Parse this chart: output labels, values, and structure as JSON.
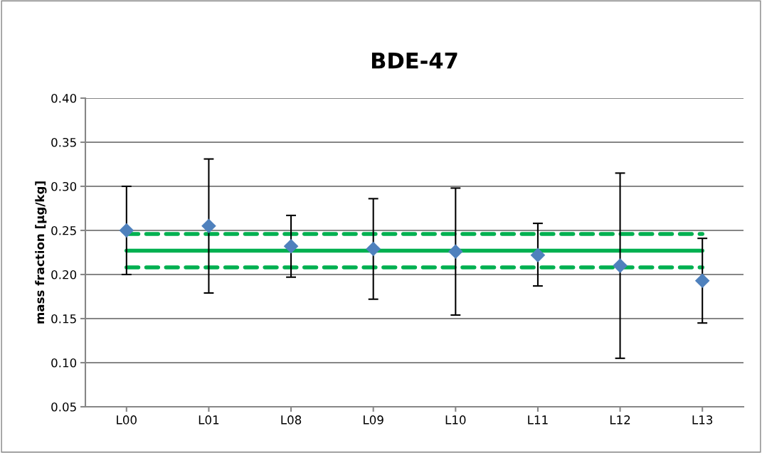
{
  "chart_data": {
    "type": "scatter",
    "title": "BDE-47",
    "ylabel": "mass fraction [µg/kg]",
    "categories": [
      "L00",
      "L01",
      "L08",
      "L09",
      "L10",
      "L11",
      "L12",
      "L13"
    ],
    "series": [
      {
        "color": "#4f81bd",
        "marker": "diamond",
        "values": [
          0.25,
          0.255,
          0.232,
          0.229,
          0.226,
          0.222,
          0.21,
          0.193
        ],
        "errors": [
          [
            0.2,
            0.3
          ],
          [
            0.179,
            0.331
          ],
          [
            0.197,
            0.267
          ],
          [
            0.172,
            0.286
          ],
          [
            0.154,
            0.298
          ],
          [
            0.187,
            0.258
          ],
          [
            0.105,
            0.315
          ],
          [
            0.145,
            0.241
          ]
        ]
      },
      {
        "type": "line",
        "color": "#00b050",
        "line_style": "solid",
        "values": [
          0.227,
          0.227,
          0.227,
          0.227,
          0.227,
          0.227,
          0.227,
          0.227
        ]
      },
      {
        "type": "line",
        "color": "#00b050",
        "line_style": "dashed",
        "values": [
          0.246,
          0.246,
          0.246,
          0.246,
          0.246,
          0.246,
          0.246,
          0.246
        ]
      },
      {
        "type": "line",
        "color": "#00b050",
        "line_style": "dashed",
        "values": [
          0.208,
          0.208,
          0.208,
          0.208,
          0.208,
          0.208,
          0.208,
          0.208
        ]
      }
    ],
    "ylim": [
      0.05,
      0.4
    ],
    "yticks": [
      {
        "value": 0.05,
        "label": "0.05"
      },
      {
        "value": 0.1,
        "label": "0.10"
      },
      {
        "value": 0.15,
        "label": "0.15"
      },
      {
        "value": 0.2,
        "label": "0.20"
      },
      {
        "value": 0.25,
        "label": "0.25"
      },
      {
        "value": 0.3,
        "label": "0.30"
      },
      {
        "value": 0.35,
        "label": "0.35"
      },
      {
        "value": 0.4,
        "label": "0.40"
      }
    ],
    "grid": "y",
    "legend": false
  }
}
